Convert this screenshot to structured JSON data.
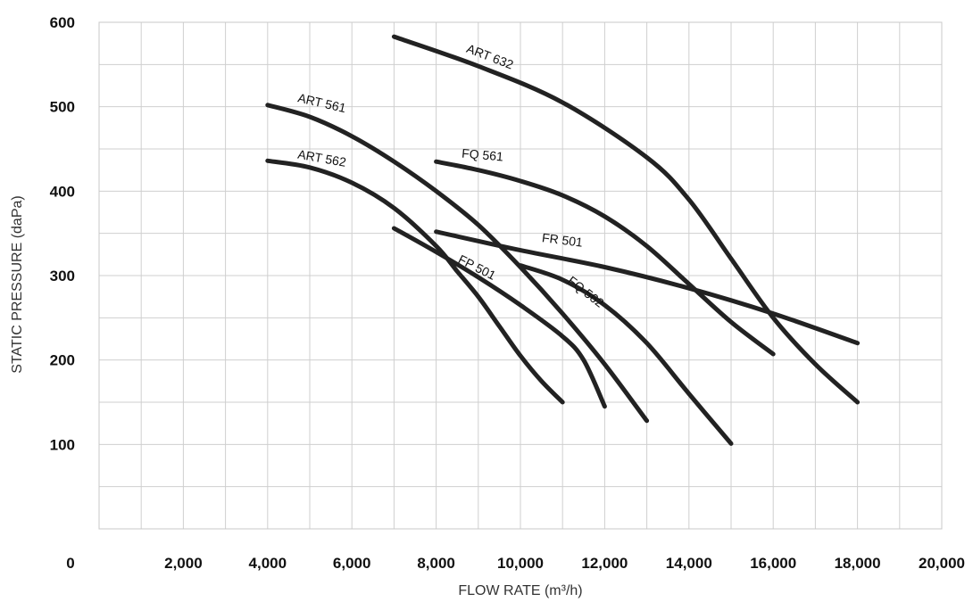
{
  "chart_data": {
    "type": "line",
    "title": "",
    "xlabel": "FLOW RATE (m³/h)",
    "ylabel": "STATIC PRESSURE (daPa)",
    "xlim": [
      0,
      20000
    ],
    "ylim": [
      0,
      600
    ],
    "grid": true,
    "x_ticks": [
      {
        "value": 0,
        "label": "0"
      },
      {
        "value": 2000,
        "label": "2,000"
      },
      {
        "value": 4000,
        "label": "4,000"
      },
      {
        "value": 6000,
        "label": "6,000"
      },
      {
        "value": 8000,
        "label": "8,000"
      },
      {
        "value": 10000,
        "label": "10,000"
      },
      {
        "value": 12000,
        "label": "12,000"
      },
      {
        "value": 14000,
        "label": "14,000"
      },
      {
        "value": 16000,
        "label": "16,000"
      },
      {
        "value": 18000,
        "label": "18,000"
      },
      {
        "value": 20000,
        "label": "20,000"
      }
    ],
    "y_ticks": [
      {
        "value": 100,
        "label": "100"
      },
      {
        "value": 200,
        "label": "200"
      },
      {
        "value": 300,
        "label": "300"
      },
      {
        "value": 400,
        "label": "400"
      },
      {
        "value": 500,
        "label": "500"
      },
      {
        "value": 600,
        "label": "600"
      }
    ],
    "series": [
      {
        "name": "ART 632",
        "points": [
          [
            7000,
            583
          ],
          [
            9000,
            548
          ],
          [
            11000,
            505
          ],
          [
            13000,
            440
          ],
          [
            14000,
            390
          ],
          [
            15000,
            320
          ],
          [
            16000,
            250
          ],
          [
            17000,
            195
          ],
          [
            18000,
            150
          ]
        ]
      },
      {
        "name": "ART 561",
        "points": [
          [
            4000,
            502
          ],
          [
            5000,
            488
          ],
          [
            6000,
            465
          ],
          [
            7000,
            435
          ],
          [
            8000,
            400
          ],
          [
            9000,
            360
          ],
          [
            10000,
            310
          ],
          [
            11000,
            255
          ],
          [
            12000,
            195
          ],
          [
            13000,
            128
          ]
        ]
      },
      {
        "name": "ART 562",
        "points": [
          [
            4000,
            436
          ],
          [
            5000,
            428
          ],
          [
            6000,
            410
          ],
          [
            7000,
            380
          ],
          [
            8000,
            335
          ],
          [
            8500,
            305
          ],
          [
            9000,
            275
          ],
          [
            9500,
            240
          ],
          [
            10000,
            205
          ],
          [
            10500,
            175
          ],
          [
            11000,
            150
          ]
        ]
      },
      {
        "name": "FQ 561",
        "points": [
          [
            8000,
            435
          ],
          [
            9000,
            425
          ],
          [
            10000,
            412
          ],
          [
            11000,
            395
          ],
          [
            12000,
            370
          ],
          [
            13000,
            335
          ],
          [
            14000,
            290
          ],
          [
            15000,
            245
          ],
          [
            16000,
            207
          ]
        ]
      },
      {
        "name": "FR 501",
        "points": [
          [
            8000,
            352
          ],
          [
            10000,
            330
          ],
          [
            12000,
            310
          ],
          [
            14000,
            285
          ],
          [
            16000,
            255
          ],
          [
            18000,
            220
          ]
        ]
      },
      {
        "name": "FP 501",
        "points": [
          [
            7000,
            356
          ],
          [
            8000,
            328
          ],
          [
            9000,
            298
          ],
          [
            10000,
            265
          ],
          [
            11000,
            228
          ],
          [
            11500,
            200
          ],
          [
            12000,
            145
          ]
        ]
      },
      {
        "name": "FQ 562",
        "points": [
          [
            10000,
            312
          ],
          [
            11000,
            295
          ],
          [
            12000,
            265
          ],
          [
            13000,
            220
          ],
          [
            14000,
            160
          ],
          [
            15000,
            101
          ]
        ]
      }
    ],
    "curve_labels": [
      {
        "text": "ART 632",
        "x": 8700,
        "y": 565,
        "angle": 21
      },
      {
        "text": "ART 561",
        "x": 4700,
        "y": 506,
        "angle": 13
      },
      {
        "text": "ART 562",
        "x": 4700,
        "y": 439,
        "angle": 10
      },
      {
        "text": "FQ 561",
        "x": 8600,
        "y": 440,
        "angle": 5
      },
      {
        "text": "FR 501",
        "x": 10500,
        "y": 340,
        "angle": 7
      },
      {
        "text": "FP 501",
        "x": 8500,
        "y": 316,
        "angle": 27
      },
      {
        "text": "FQ 562",
        "x": 11100,
        "y": 292,
        "angle": 38
      }
    ]
  }
}
